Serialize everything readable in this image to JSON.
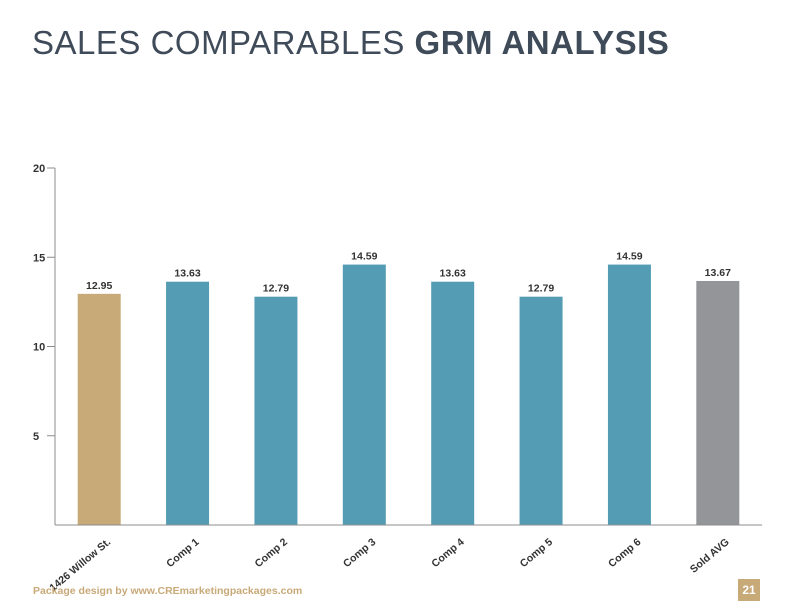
{
  "header": {
    "title_light": "SALES COMPARABLES",
    "title_bold": "GRM ANALYSIS"
  },
  "footer": {
    "credit": "Package design by www.CREmarketingpackages.com",
    "page_number": "21"
  },
  "colors": {
    "subject": "#c8a978",
    "comp": "#539cb4",
    "average": "#939598",
    "axis": "#8c8c8c",
    "title": "#3f4b59"
  },
  "chart_data": {
    "type": "bar",
    "title": "",
    "xlabel": "",
    "ylabel": "",
    "categories": [
      "1426 Willow St.",
      "Comp 1",
      "Comp 2",
      "Comp 3",
      "Comp 4",
      "Comp 5",
      "Comp 6",
      "Sold AVG"
    ],
    "values": [
      12.95,
      13.63,
      12.79,
      14.59,
      13.63,
      12.79,
      14.59,
      13.67
    ],
    "value_labels": [
      "12.95",
      "13.63",
      "12.79",
      "14.59",
      "13.63",
      "12.79",
      "14.59",
      "13.67"
    ],
    "bar_color_roles": [
      "subject",
      "comp",
      "comp",
      "comp",
      "comp",
      "comp",
      "comp",
      "average"
    ],
    "ylim": [
      0,
      20
    ],
    "yticks": [
      5,
      10,
      15,
      20
    ],
    "ytick_labels": [
      "5",
      "10",
      "15",
      "20"
    ],
    "grid": false,
    "legend": "none"
  }
}
